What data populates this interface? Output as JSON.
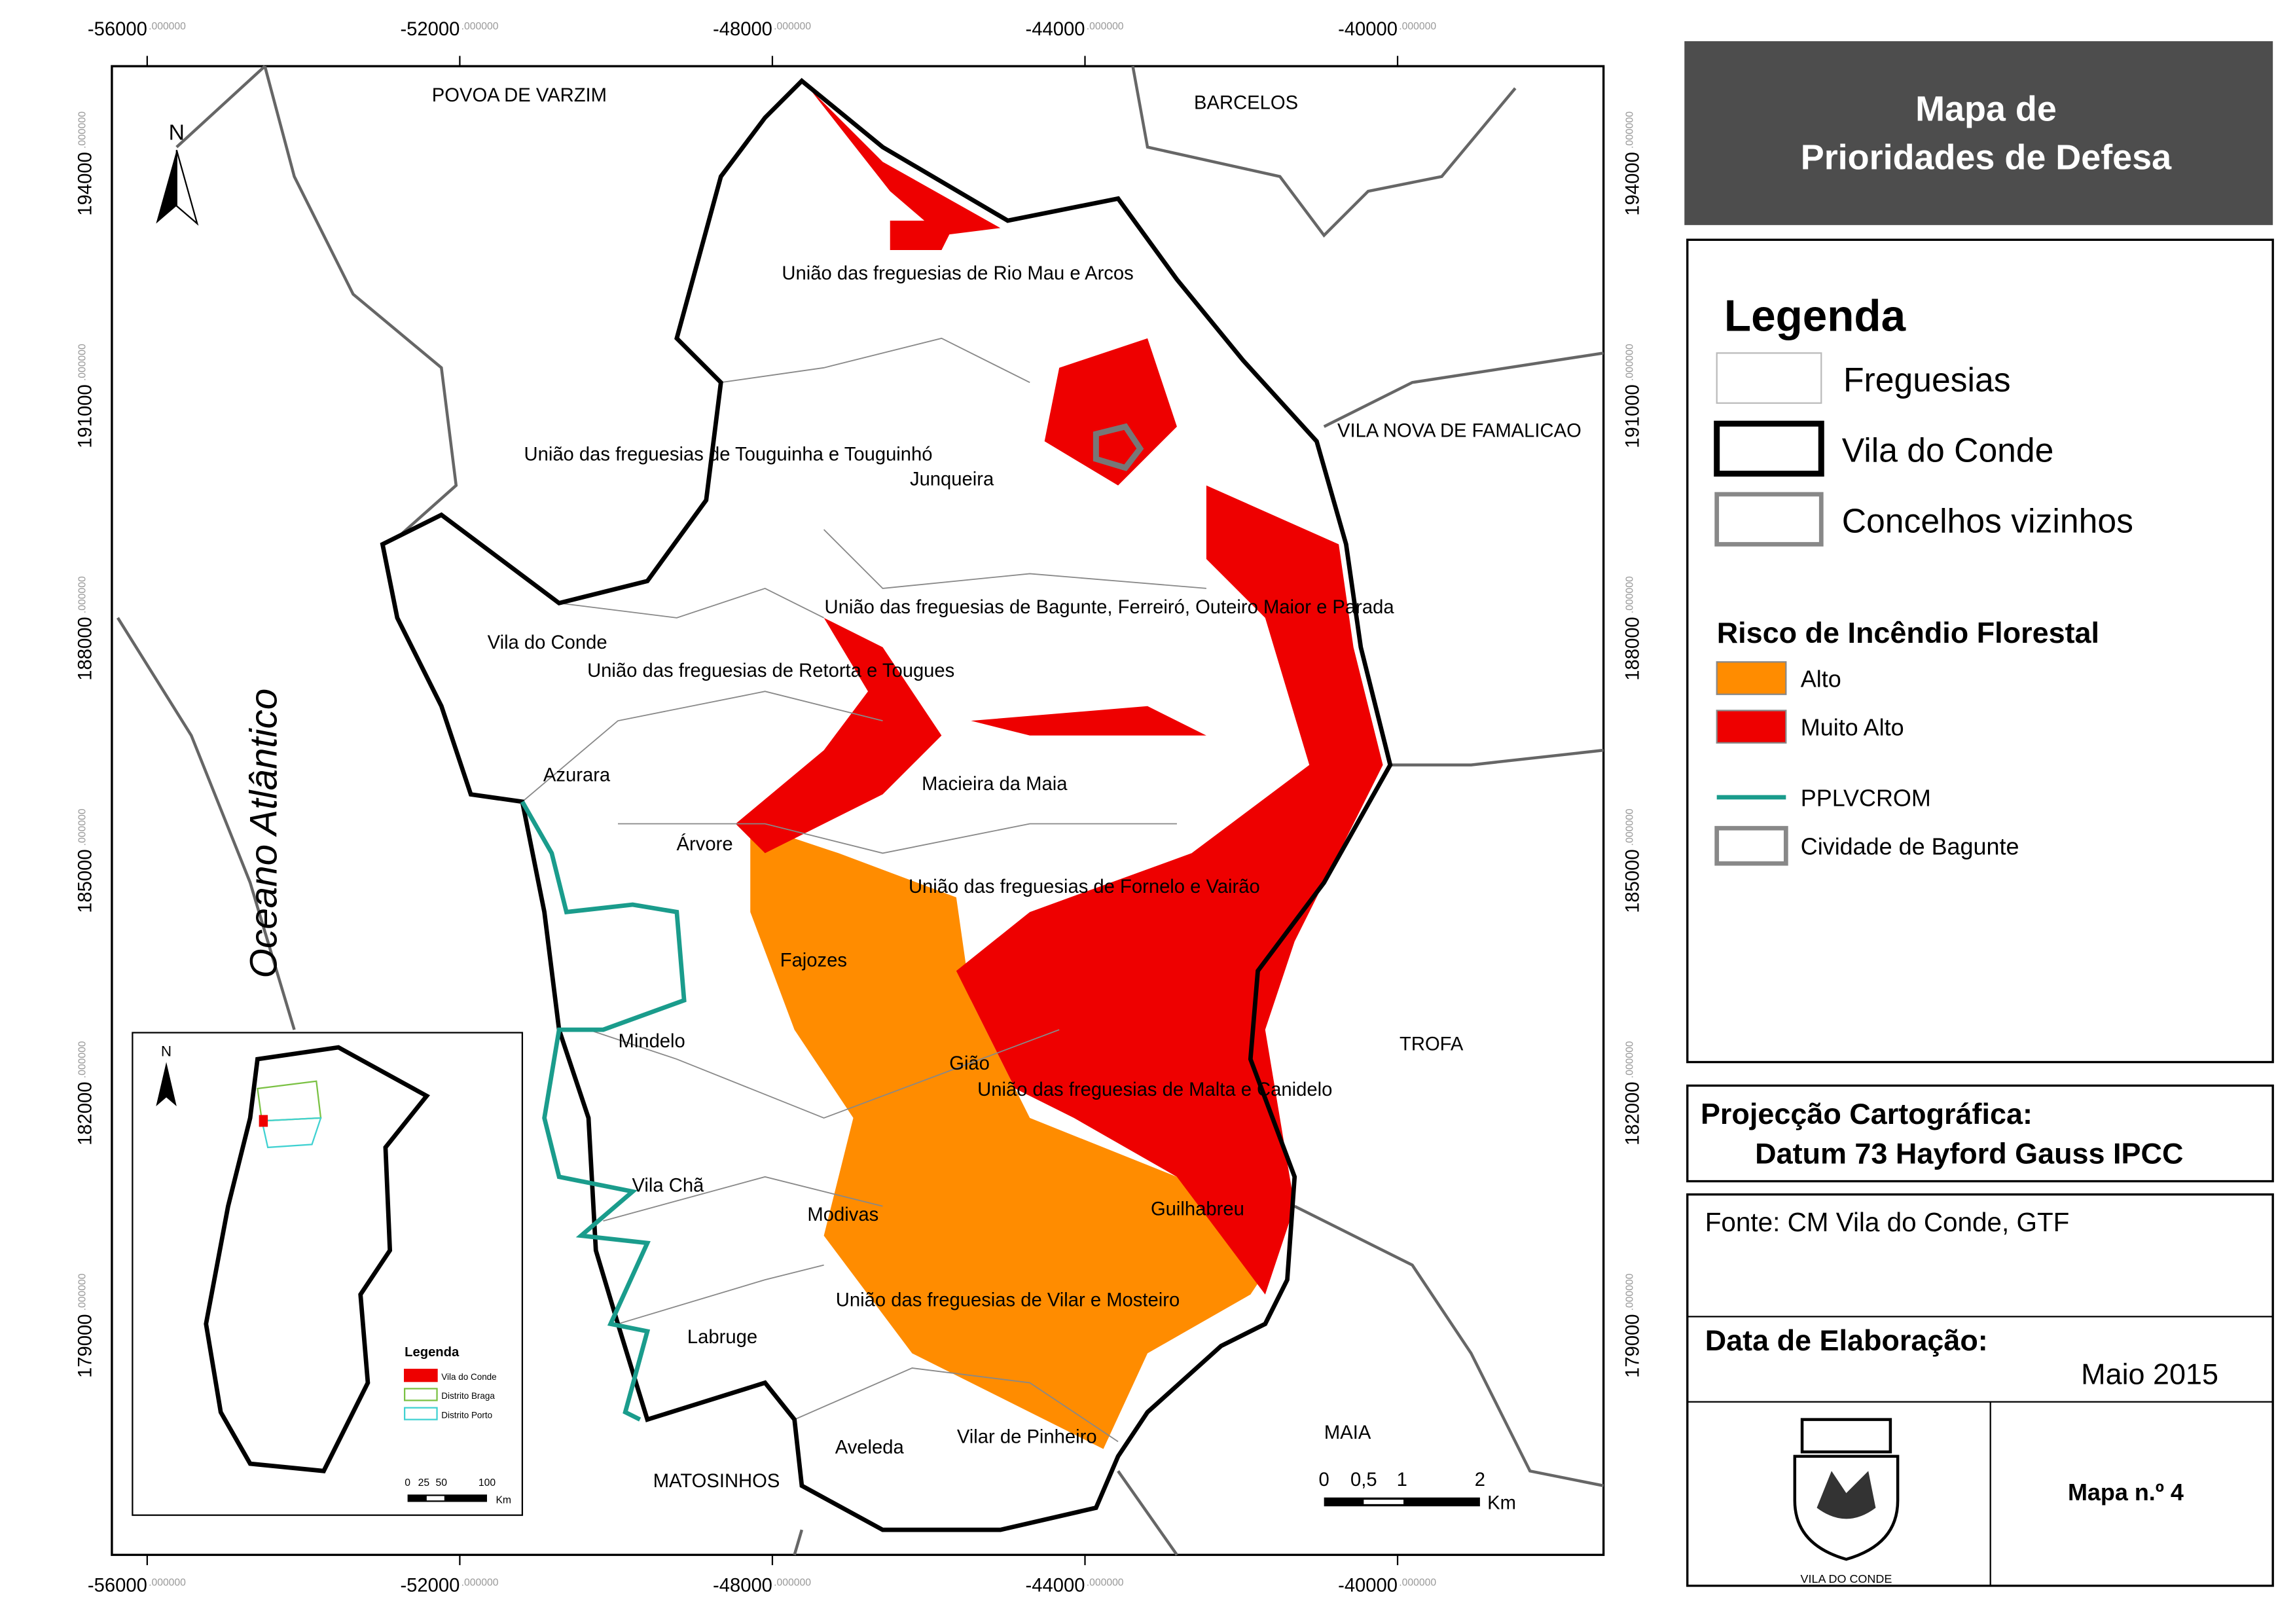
{
  "map": {
    "tick_decimals": ".000000",
    "x_ticks": [
      "-56000",
      "-52000",
      "-48000",
      "-44000",
      "-40000"
    ],
    "y_ticks": [
      "194000",
      "191000",
      "188000",
      "185000",
      "182000",
      "179000"
    ],
    "north": "N",
    "ocean": "Oceano Atlântico",
    "places": [
      "POVOA DE VARZIM",
      "BARCELOS",
      "União das freguesias de Rio Mau e Arcos",
      "VILA NOVA DE FAMALICAO",
      "União das freguesias de Touguinha e Touguinhó",
      "Junqueira",
      "União das freguesias de Bagunte, Ferreiró, Outeiro Maior e Parada",
      "Vila do Conde",
      "União das freguesias de Retorta e Tougues",
      "Azurara",
      "Macieira da Maia",
      "Árvore",
      "União das freguesias de Fornelo e Vairão",
      "Fajozes",
      "TROFA",
      "Mindelo",
      "Gião",
      "União das freguesias de Malta e Canidelo",
      "Vila Chã",
      "Modivas",
      "Guilhabreu",
      "União das freguesias de Vilar e Mosteiro",
      "Labruge",
      "MAIA",
      "Vilar de Pinheiro",
      "Aveleda",
      "MATOSINHOS"
    ],
    "scale": {
      "labels": [
        "0",
        "0,5",
        "1",
        "2"
      ],
      "unit": "Km"
    },
    "inset": {
      "north": "N",
      "legend_title": "Legenda",
      "items": [
        "Vila do Conde",
        "Distrito Braga",
        "Distrito Porto"
      ],
      "scale_labels": [
        "0",
        "25",
        "50",
        "100"
      ],
      "unit": "Km"
    }
  },
  "title": [
    "Mapa de",
    "Prioridades de Defesa"
  ],
  "legend": {
    "title": "Legenda",
    "items": [
      "Freguesias",
      "Vila do Conde",
      "Concelhos vizinhos"
    ],
    "risk_title": "Risco de Incêndio Florestal",
    "risk_items": [
      "Alto",
      "Muito Alto"
    ],
    "other_items": [
      "PPLVCROM",
      "Cividade de Bagunte"
    ]
  },
  "projection": {
    "title": "Projecção Cartográfica:",
    "value": "Datum 73 Hayford Gauss IPCC"
  },
  "source": "Fonte: CM Vila do Conde, GTF",
  "date": {
    "title": "Data de Elaboração:",
    "value": "Maio 2015"
  },
  "logo_text": "VILA DO CONDE",
  "map_number": "Mapa n.º 4"
}
